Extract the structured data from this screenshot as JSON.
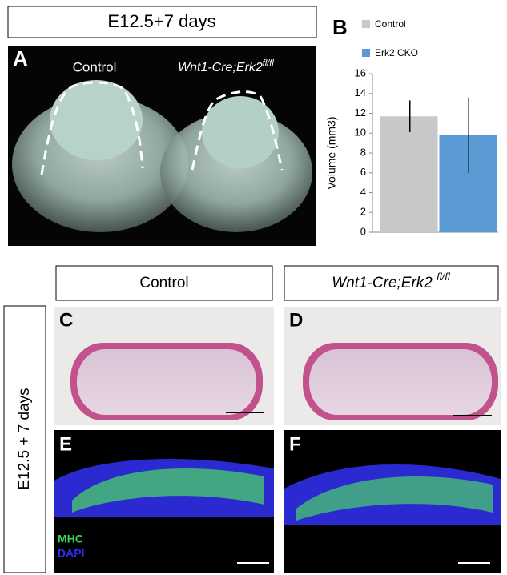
{
  "figure_title": "E12.5+7 days",
  "panel_a": {
    "label": "A",
    "control": "Control",
    "mutant": {
      "main": "Wnt1-Cre;Erk2",
      "sup": "fl/fl"
    }
  },
  "chart_data": {
    "type": "bar",
    "label": "B",
    "ylabel": "Volume (mm3)",
    "categories": [
      null
    ],
    "series": [
      {
        "name": "Control",
        "color": "#c8c8c8",
        "values": [
          11.7
        ],
        "errors": [
          1.6
        ]
      },
      {
        "name": "Erk2 CKO",
        "color": "#5b9bd5",
        "values": [
          9.8
        ],
        "errors": [
          3.8
        ]
      }
    ],
    "ylim": [
      0,
      16
    ],
    "yticks": [
      0,
      2,
      4,
      6,
      8,
      10,
      12,
      14,
      16
    ]
  },
  "column_headers": {
    "control": "Control",
    "mutant": {
      "main": "Wnt1-Cre;Erk2 ",
      "sup": "fl/fl"
    }
  },
  "row_header": "E12.5 + 7 days",
  "panels": {
    "c": "C",
    "d": "D",
    "e": "E",
    "f": "F"
  },
  "stain_labels": {
    "mhc": "MHC",
    "dapi": "DAPI"
  }
}
